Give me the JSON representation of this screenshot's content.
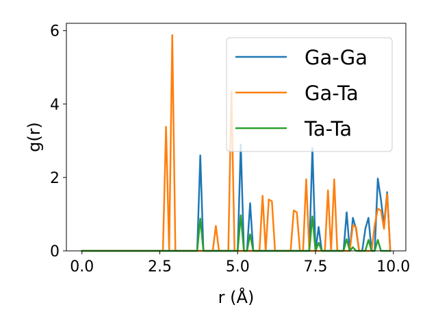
{
  "chart_data": {
    "type": "line",
    "title": "",
    "xlabel": "r (Å)",
    "ylabel": "g(r)",
    "xlim": [
      -0.5,
      10.4
    ],
    "ylim": [
      0,
      6.2
    ],
    "xticks": [
      0.0,
      2.5,
      5.0,
      7.5,
      10.0
    ],
    "xtick_labels": [
      "0.0",
      "2.5",
      "5.0",
      "7.5",
      "10.0"
    ],
    "yticks": [
      0,
      2,
      4,
      6
    ],
    "ytick_labels": [
      "0",
      "2",
      "4",
      "6"
    ],
    "grid": false,
    "legend_position": "top-right",
    "series": [
      {
        "name": "Ga-Ga",
        "color": "#1f77b4",
        "points": [
          [
            0,
            0
          ],
          [
            3.7,
            0
          ],
          [
            3.8,
            2.6
          ],
          [
            3.9,
            0
          ],
          [
            5.0,
            0
          ],
          [
            5.1,
            2.9
          ],
          [
            5.2,
            0
          ],
          [
            5.3,
            0
          ],
          [
            5.4,
            1.3
          ],
          [
            5.5,
            0
          ],
          [
            7.3,
            0
          ],
          [
            7.4,
            2.8
          ],
          [
            7.5,
            0
          ],
          [
            7.6,
            0.65
          ],
          [
            7.7,
            0
          ],
          [
            8.4,
            0
          ],
          [
            8.5,
            1.05
          ],
          [
            8.6,
            0
          ],
          [
            8.7,
            0.9
          ],
          [
            8.8,
            0.6
          ],
          [
            8.9,
            0
          ],
          [
            9.0,
            0
          ],
          [
            9.1,
            0.6
          ],
          [
            9.2,
            0.9
          ],
          [
            9.3,
            0
          ],
          [
            9.4,
            0
          ],
          [
            9.5,
            1.97
          ],
          [
            9.6,
            1.4
          ],
          [
            9.7,
            0.7
          ],
          [
            9.8,
            1.6
          ],
          [
            9.9,
            0
          ]
        ]
      },
      {
        "name": "Ga-Ta",
        "color": "#ff7f0e",
        "points": [
          [
            0,
            0
          ],
          [
            2.6,
            0
          ],
          [
            2.7,
            3.38
          ],
          [
            2.8,
            0
          ],
          [
            2.9,
            5.88
          ],
          [
            3.0,
            0
          ],
          [
            4.2,
            0
          ],
          [
            4.3,
            0.68
          ],
          [
            4.4,
            0
          ],
          [
            4.7,
            0
          ],
          [
            4.8,
            4.35
          ],
          [
            4.9,
            0
          ],
          [
            5.7,
            0
          ],
          [
            5.8,
            1.5
          ],
          [
            5.9,
            0
          ],
          [
            6.0,
            1.4
          ],
          [
            6.1,
            1.35
          ],
          [
            6.2,
            0
          ],
          [
            6.7,
            0
          ],
          [
            6.8,
            1.1
          ],
          [
            6.9,
            1.05
          ],
          [
            7.0,
            0
          ],
          [
            7.1,
            0
          ],
          [
            7.2,
            1.95
          ],
          [
            7.3,
            0
          ],
          [
            7.8,
            0
          ],
          [
            7.9,
            1.65
          ],
          [
            8.0,
            0
          ],
          [
            8.1,
            1.95
          ],
          [
            8.2,
            0
          ],
          [
            8.6,
            0
          ],
          [
            8.7,
            0.7
          ],
          [
            8.8,
            0.65
          ],
          [
            8.9,
            0
          ],
          [
            9.3,
            0
          ],
          [
            9.4,
            0.7
          ],
          [
            9.5,
            1.15
          ],
          [
            9.6,
            1.1
          ],
          [
            9.7,
            0.6
          ],
          [
            9.8,
            1.55
          ],
          [
            9.9,
            0
          ]
        ]
      },
      {
        "name": "Ta-Ta",
        "color": "#2ca02c",
        "points": [
          [
            0,
            0
          ],
          [
            3.7,
            0
          ],
          [
            3.8,
            0.88
          ],
          [
            3.9,
            0
          ],
          [
            5.0,
            0
          ],
          [
            5.1,
            0.97
          ],
          [
            5.2,
            0
          ],
          [
            5.3,
            0
          ],
          [
            5.4,
            0.45
          ],
          [
            5.5,
            0
          ],
          [
            7.3,
            0
          ],
          [
            7.4,
            0.94
          ],
          [
            7.5,
            0
          ],
          [
            7.6,
            0.22
          ],
          [
            7.7,
            0
          ],
          [
            8.4,
            0
          ],
          [
            8.5,
            0.32
          ],
          [
            8.6,
            0
          ],
          [
            8.7,
            0.1
          ],
          [
            8.8,
            0
          ],
          [
            9.1,
            0
          ],
          [
            9.2,
            0.3
          ],
          [
            9.3,
            0
          ],
          [
            9.4,
            0
          ],
          [
            9.5,
            0.3
          ],
          [
            9.6,
            0
          ],
          [
            9.9,
            0
          ]
        ]
      }
    ]
  }
}
